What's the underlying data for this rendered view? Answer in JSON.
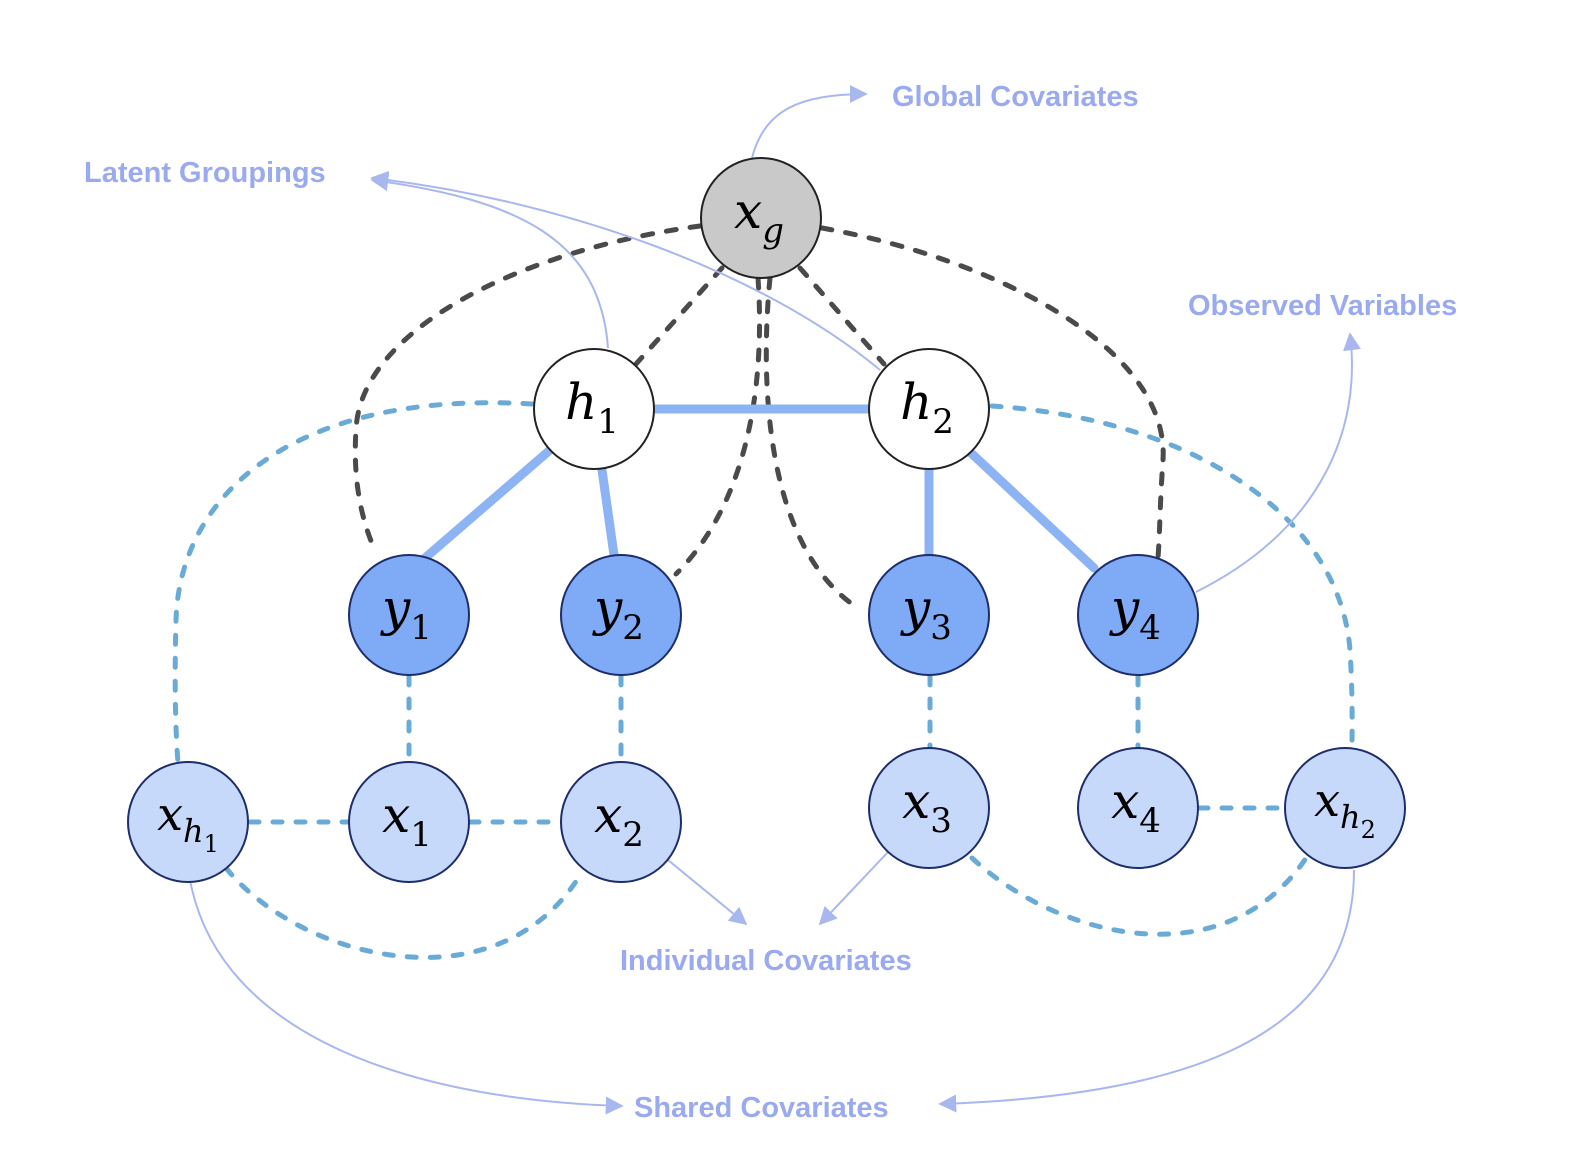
{
  "colors": {
    "label": "#9aaaf0",
    "observed_fill": "#7faaf5",
    "covariate_fill": "#c6d9fa",
    "global_fill": "#c9c9c9",
    "latent_fill": "#ffffff",
    "node_stroke": "#1e2d6b",
    "solid_edge": "#8cb3f4",
    "dashed_dark": "#4a4a4a",
    "dashed_blue": "#6aaad6",
    "annotation_line": "#a9b7ef"
  },
  "labels": {
    "global_covariates": "Global Covariates",
    "latent_groupings": "Latent Groupings",
    "observed_variables": "Observed Variables",
    "individual_covariates": "Individual Covariates",
    "shared_covariates": "Shared Covariates"
  },
  "nodes": {
    "xg": {
      "base": "x",
      "sub": "g",
      "kind": "global"
    },
    "h1": {
      "base": "h",
      "sub": "1",
      "kind": "latent"
    },
    "h2": {
      "base": "h",
      "sub": "2",
      "kind": "latent"
    },
    "y1": {
      "base": "y",
      "sub": "1",
      "kind": "observed"
    },
    "y2": {
      "base": "y",
      "sub": "2",
      "kind": "observed"
    },
    "y3": {
      "base": "y",
      "sub": "3",
      "kind": "observed"
    },
    "y4": {
      "base": "y",
      "sub": "4",
      "kind": "observed"
    },
    "xh1": {
      "base": "x",
      "sub": "h",
      "subsub": "1",
      "kind": "covariate"
    },
    "x1": {
      "base": "x",
      "sub": "1",
      "kind": "covariate"
    },
    "x2": {
      "base": "x",
      "sub": "2",
      "kind": "covariate"
    },
    "x3": {
      "base": "x",
      "sub": "3",
      "kind": "covariate"
    },
    "x4": {
      "base": "x",
      "sub": "4",
      "kind": "covariate"
    },
    "xh2": {
      "base": "x",
      "sub": "h",
      "subsub": "2",
      "kind": "covariate"
    }
  }
}
